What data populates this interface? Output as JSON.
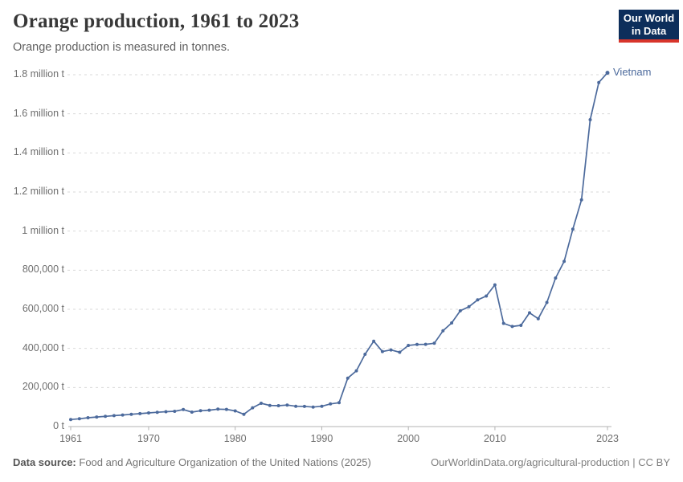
{
  "header": {
    "title": "Orange production, 1961 to 2023",
    "subtitle": "Orange production is measured in tonnes."
  },
  "logo": {
    "line1": "Our World",
    "line2": "in Data"
  },
  "colors": {
    "line": "#4c6a9c",
    "logo_bg": "#0d2e5b",
    "logo_accent": "#d8352b",
    "grid": "#d9d9d9",
    "axis": "#b3b3b3"
  },
  "chart_data": {
    "type": "line",
    "title": "Orange production, 1961 to 2023",
    "unit": "tonnes",
    "xlim": [
      1961,
      2023
    ],
    "ylim": [
      0,
      1800000
    ],
    "grid": "horizontal-dashed",
    "legend_position": "end-of-line-label",
    "x_ticks": [
      1961,
      1970,
      1980,
      1990,
      2000,
      2010,
      2023
    ],
    "y_ticks": [
      {
        "value": 0,
        "label": "0 t"
      },
      {
        "value": 200000,
        "label": "200,000 t"
      },
      {
        "value": 400000,
        "label": "400,000 t"
      },
      {
        "value": 600000,
        "label": "600,000 t"
      },
      {
        "value": 800000,
        "label": "800,000 t"
      },
      {
        "value": 1000000,
        "label": "1 million t"
      },
      {
        "value": 1200000,
        "label": "1.2 million t"
      },
      {
        "value": 1400000,
        "label": "1.4 million t"
      },
      {
        "value": 1600000,
        "label": "1.6 million t"
      },
      {
        "value": 1800000,
        "label": "1.8 million t"
      }
    ],
    "series": [
      {
        "name": "Vietnam",
        "color": "#4c6a9c",
        "x": [
          1961,
          1962,
          1963,
          1964,
          1965,
          1966,
          1967,
          1968,
          1969,
          1970,
          1971,
          1972,
          1973,
          1974,
          1975,
          1976,
          1977,
          1978,
          1979,
          1980,
          1981,
          1982,
          1983,
          1984,
          1985,
          1986,
          1987,
          1988,
          1989,
          1990,
          1991,
          1992,
          1993,
          1994,
          1995,
          1996,
          1997,
          1998,
          1999,
          2000,
          2001,
          2002,
          2003,
          2004,
          2005,
          2006,
          2007,
          2008,
          2009,
          2010,
          2011,
          2012,
          2013,
          2014,
          2015,
          2016,
          2017,
          2018,
          2019,
          2020,
          2021,
          2022,
          2023
        ],
        "values": [
          36000,
          40000,
          45000,
          49000,
          52000,
          56000,
          59000,
          63000,
          66000,
          70000,
          73000,
          76000,
          78000,
          87000,
          74000,
          81000,
          84000,
          89000,
          88000,
          80000,
          63000,
          96000,
          119000,
          108000,
          107000,
          110000,
          104000,
          103000,
          100000,
          104000,
          116000,
          122000,
          248000,
          285000,
          370000,
          437000,
          384000,
          392000,
          380000,
          415000,
          420000,
          421000,
          426000,
          490000,
          530000,
          592000,
          613000,
          648000,
          668000,
          725000,
          528000,
          512000,
          518000,
          582000,
          552000,
          635000,
          760000,
          845000,
          1010000,
          1160000,
          1570000,
          1760000,
          1810000
        ]
      }
    ]
  },
  "footer": {
    "source_label": "Data source:",
    "source_text": "Food and Agriculture Organization of the United Nations (2025)",
    "credit_text": "OurWorldinData.org/agricultural-production | CC BY"
  }
}
